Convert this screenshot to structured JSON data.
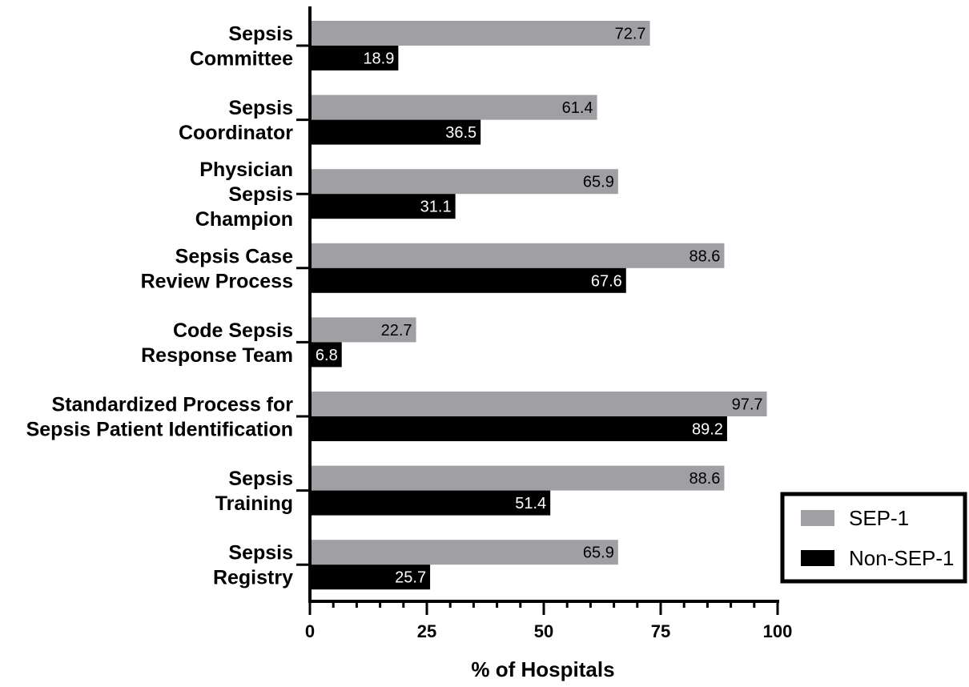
{
  "chart_data": {
    "type": "bar",
    "orientation": "horizontal",
    "categories": [
      [
        "Sepsis",
        "Committee"
      ],
      [
        "Sepsis",
        "Coordinator"
      ],
      [
        "Physician",
        "Sepsis",
        "Champion"
      ],
      [
        "Sepsis Case",
        "Review Process"
      ],
      [
        "Code Sepsis",
        "Response Team"
      ],
      [
        "Standardized Process for",
        "Sepsis Patient Identification"
      ],
      [
        "Sepsis",
        "Training"
      ],
      [
        "Sepsis",
        "Registry"
      ]
    ],
    "series": [
      {
        "name": "SEP-1",
        "color": "#a0a0a4",
        "values": [
          72.7,
          61.4,
          65.9,
          88.6,
          22.7,
          97.7,
          88.6,
          65.9
        ]
      },
      {
        "name": "Non-SEP-1",
        "color": "#000000",
        "values": [
          18.9,
          36.5,
          31.1,
          67.6,
          6.8,
          89.2,
          51.4,
          25.7
        ]
      }
    ],
    "data_labels": {
      "SEP-1": [
        "72.7",
        "61.4",
        "65.9",
        "88.6",
        "22.7",
        "97.7",
        "88.6",
        "65.9"
      ],
      "Non-SEP-1": [
        "18.9",
        "36.5",
        "31.1",
        "67.6",
        "6.8",
        "89.2",
        "51.4",
        "25.7"
      ]
    },
    "xlabel": "% of Hospitals",
    "ylabel": "",
    "xlim": [
      0,
      100
    ],
    "xticks": [
      0,
      25,
      50,
      75,
      100
    ],
    "xtick_labels": [
      "0",
      "25",
      "50",
      "75",
      "100"
    ],
    "minor_tick_step": 5,
    "grid": false,
    "legend": {
      "position": "bottom-right",
      "entries": [
        "SEP-1",
        "Non-SEP-1"
      ]
    }
  }
}
